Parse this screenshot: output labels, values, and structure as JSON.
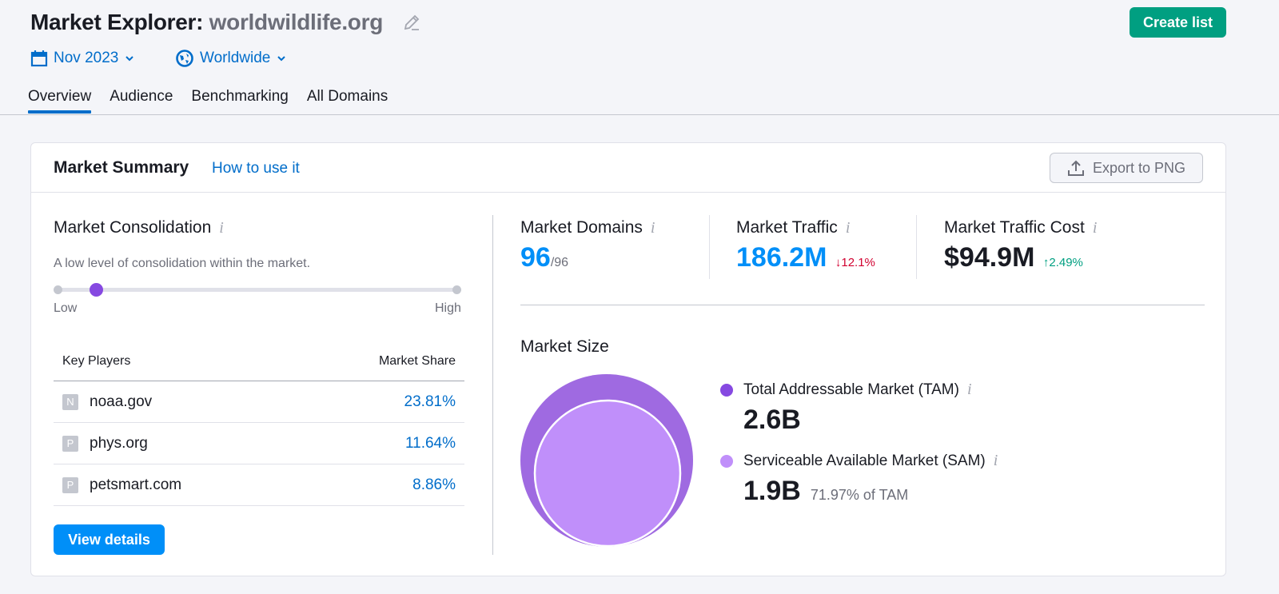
{
  "header": {
    "title_prefix": "Market Explorer:",
    "title_domain": "worldwildlife.org",
    "create_list": "Create list",
    "date": "Nov 2023",
    "region": "Worldwide"
  },
  "tabs": [
    {
      "label": "Overview",
      "active": true
    },
    {
      "label": "Audience"
    },
    {
      "label": "Benchmarking"
    },
    {
      "label": "All Domains"
    }
  ],
  "card": {
    "title": "Market Summary",
    "how_to": "How to use it",
    "export": "Export to PNG"
  },
  "consolidation": {
    "title": "Market Consolidation",
    "description": "A low level of consolidation within the market.",
    "low": "Low",
    "high": "High",
    "level_percent": 10
  },
  "players": {
    "col1": "Key Players",
    "col2": "Market Share",
    "rows": [
      {
        "letter": "N",
        "domain": "noaa.gov",
        "share": "23.81%"
      },
      {
        "letter": "P",
        "domain": "phys.org",
        "share": "11.64%"
      },
      {
        "letter": "P",
        "domain": "petsmart.com",
        "share": "8.86%"
      }
    ],
    "view_details": "View details"
  },
  "metrics": {
    "domains": {
      "label": "Market Domains",
      "value": "96",
      "total": "/96"
    },
    "traffic": {
      "label": "Market Traffic",
      "value": "186.2M",
      "change": "↓12.1%"
    },
    "cost": {
      "label": "Market Traffic Cost",
      "value": "$94.9M",
      "change": "↑2.49%"
    }
  },
  "size": {
    "title": "Market Size",
    "tam_label": "Total Addressable Market (TAM)",
    "tam": "2.6B",
    "sam_label": "Serviceable Available Market (SAM)",
    "sam": "1.9B",
    "sam_pct": "71.97% of TAM"
  },
  "colors": {
    "accent": "#006dca",
    "green": "#009f81",
    "tam": "#9f6ae1",
    "sam": "#c08ffa",
    "up": "#009f81",
    "down": "#d1002f",
    "metric_blue": "#008ff8"
  }
}
